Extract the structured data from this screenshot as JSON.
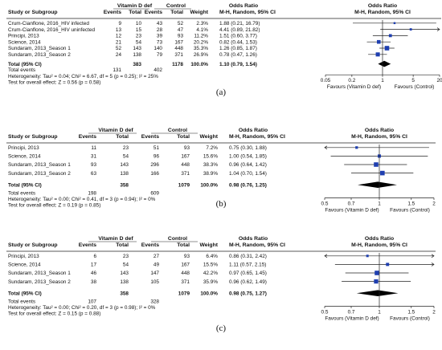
{
  "panels": [
    {
      "caption": "(a)",
      "header": {
        "study": "Study or Subgroup",
        "group1": "Vitamin D def",
        "group2": "Control",
        "events1": "Events",
        "total1": "Total",
        "events2": "Events",
        "total2": "Total",
        "weight": "Weight",
        "or_title": "Odds Ratio",
        "or_sub": "M-H, Random, 95% CI",
        "plot_title": "Odds Ratio",
        "plot_sub": "M-H, Random, 95% CI"
      },
      "rows": [
        {
          "study": "Crum-Cianflone, 2016_HIV infected",
          "e1": "9",
          "t1": "10",
          "e2": "43",
          "t2": "52",
          "w": "2.3%",
          "ci": "1.88 (0.21, 16.79)",
          "or": 1.88,
          "lo": 0.21,
          "hi": 16.79
        },
        {
          "study": "Crum-Cianflone, 2016_HIV uninfected",
          "e1": "13",
          "t1": "15",
          "e2": "28",
          "t2": "47",
          "w": "4.1%",
          "ci": "4.41 (0.89, 21.82)",
          "or": 4.41,
          "lo": 0.89,
          "hi": 21.82
        },
        {
          "study": "Principi, 2013",
          "e1": "12",
          "t1": "23",
          "e2": "39",
          "t2": "93",
          "w": "11.2%",
          "ci": "1.51 (0.60, 3.77)",
          "or": 1.51,
          "lo": 0.6,
          "hi": 3.77
        },
        {
          "study": "Science, 2014",
          "e1": "21",
          "t1": "54",
          "e2": "73",
          "t2": "167",
          "w": "20.2%",
          "ci": "0.82 (0.44, 1.53)",
          "or": 0.82,
          "lo": 0.44,
          "hi": 1.53
        },
        {
          "study": "Sundaram, 2013_Season 1",
          "e1": "52",
          "t1": "143",
          "e2": "140",
          "t2": "448",
          "w": "35.3%",
          "ci": "1.26 (0.85, 1.87)",
          "or": 1.26,
          "lo": 0.85,
          "hi": 1.87
        },
        {
          "study": "Sundaram, 2013_Season 2",
          "e1": "24",
          "t1": "138",
          "e2": "79",
          "t2": "371",
          "w": "26.9%",
          "ci": "0.78 (0.47, 1.26)",
          "or": 0.78,
          "lo": 0.47,
          "hi": 1.26
        }
      ],
      "total": {
        "label": "Total (95% CI)",
        "t1": "383",
        "t2": "1178",
        "w": "100.0%",
        "ci": "1.10 (0.79, 1.54)",
        "or": 1.1,
        "lo": 0.79,
        "hi": 1.54
      },
      "events": {
        "label": "Total events",
        "e1": "131",
        "e2": "402"
      },
      "heterogeneity": "Heterogeneity: Tau² = 0.04; Chi² = 6.67, df = 5 (p = 0.25); I² = 25%",
      "overall": "Test for overall effect: Z = 0.56 (p = 0.58)",
      "axis": {
        "ticks": [
          0.05,
          0.2,
          1,
          5,
          20
        ],
        "tick_labels": [
          "0.05",
          "0.2",
          "1",
          "5",
          "20"
        ],
        "min": 0.05,
        "max": 20
      },
      "favours_left": "Favours (Vitamin D def)",
      "favours_right": "Favours (Control)"
    },
    {
      "caption": "(b)",
      "header": {
        "study": "Study or Subgroup",
        "group1": "Vitamin D def",
        "group2": "Control",
        "events1": "Events",
        "total1": "Total",
        "events2": "Events",
        "total2": "Total",
        "weight": "Weight",
        "or_title": "Odds Ratio",
        "or_sub": "M-H, Random, 95% CI",
        "plot_title": "Odds Ratio",
        "plot_sub": "M-H, Random, 95% CI"
      },
      "rows": [
        {
          "study": "Principi, 2013",
          "e1": "11",
          "t1": "23",
          "e2": "51",
          "t2": "93",
          "w": "7.2%",
          "ci": "0.75 (0.30, 1.88)",
          "or": 0.75,
          "lo": 0.3,
          "hi": 1.88
        },
        {
          "study": "Science, 2014",
          "e1": "31",
          "t1": "54",
          "e2": "96",
          "t2": "167",
          "w": "15.6%",
          "ci": "1.00 (0.54, 1.85)",
          "or": 1.0,
          "lo": 0.54,
          "hi": 1.85
        },
        {
          "study": "Sundaram, 2013_Season 1",
          "e1": "93",
          "t1": "143",
          "e2": "296",
          "t2": "448",
          "w": "38.3%",
          "ci": "0.96 (0.64, 1.42)",
          "or": 0.96,
          "lo": 0.64,
          "hi": 1.42
        },
        {
          "study": "Sundaram, 2013_Season 2",
          "e1": "63",
          "t1": "138",
          "e2": "166",
          "t2": "371",
          "w": "38.9%",
          "ci": "1.04 (0.70, 1.54)",
          "or": 1.04,
          "lo": 0.7,
          "hi": 1.54
        }
      ],
      "total": {
        "label": "Total (95% CI)",
        "t1": "358",
        "t2": "1079",
        "w": "100.0%",
        "ci": "0.98 (0.76, 1.25)",
        "or": 0.98,
        "lo": 0.76,
        "hi": 1.25
      },
      "events": {
        "label": "Total events",
        "e1": "198",
        "e2": "609"
      },
      "heterogeneity": "Heterogeneity: Tau² = 0.00; Chi² = 0.41, df = 3 (p = 0.94); I² = 0%",
      "overall": "Test for overall effect: Z = 0.19 (p = 0.85)",
      "axis": {
        "ticks": [
          0.5,
          0.7,
          1,
          1.5,
          2
        ],
        "tick_labels": [
          "0.5",
          "0.7",
          "1",
          "1.5",
          "2"
        ],
        "min": 0.5,
        "max": 2
      },
      "favours_left": "Favours (Vitamin D def)",
      "favours_right": "Favours (Control)"
    },
    {
      "caption": "(c)",
      "header": {
        "study": "Study or Subgroup",
        "group1": "Vitamin D def",
        "group2": "Control",
        "events1": "Events",
        "total1": "Total",
        "events2": "Events",
        "total2": "Total",
        "weight": "Weight",
        "or_title": "Odds Ratio",
        "or_sub": "M-H, Random, 95% CI",
        "plot_title": "Odds Ratio",
        "plot_sub": "M-H, Random, 95% CI"
      },
      "rows": [
        {
          "study": "Principi, 2013",
          "e1": "6",
          "t1": "23",
          "e2": "27",
          "t2": "93",
          "w": "6.4%",
          "ci": "0.86 (0.31, 2.42)",
          "or": 0.86,
          "lo": 0.31,
          "hi": 2.42
        },
        {
          "study": "Science, 2014",
          "e1": "17",
          "t1": "54",
          "e2": "49",
          "t2": "167",
          "w": "15.5%",
          "ci": "1.11 (0.57, 2.15)",
          "or": 1.11,
          "lo": 0.57,
          "hi": 2.15
        },
        {
          "study": "Sundaram, 2013_Season 1",
          "e1": "46",
          "t1": "143",
          "e2": "147",
          "t2": "448",
          "w": "42.2%",
          "ci": "0.97 (0.65, 1.45)",
          "or": 0.97,
          "lo": 0.65,
          "hi": 1.45
        },
        {
          "study": "Sundaram, 2013_Season 2",
          "e1": "38",
          "t1": "138",
          "e2": "105",
          "t2": "371",
          "w": "35.9%",
          "ci": "0.96 (0.62, 1.49)",
          "or": 0.96,
          "lo": 0.62,
          "hi": 1.49
        }
      ],
      "total": {
        "label": "Total (95% CI)",
        "t1": "358",
        "t2": "1079",
        "w": "100.0%",
        "ci": "0.98 (0.75, 1.27)",
        "or": 0.98,
        "lo": 0.75,
        "hi": 1.27
      },
      "events": {
        "label": "Total events",
        "e1": "107",
        "e2": "328"
      },
      "heterogeneity": "Heterogeneity: Tau² = 0.00; Chi² = 0.20, df = 3 (p = 0.98); I² = 0%",
      "overall": "Test for overall effect: Z = 0.15 (p = 0.88)",
      "axis": {
        "ticks": [
          0.5,
          0.7,
          1,
          1.5,
          2
        ],
        "tick_labels": [
          "0.5",
          "0.7",
          "1",
          "1.5",
          "2"
        ],
        "min": 0.5,
        "max": 2
      },
      "favours_left": "Favours (Vitamin D def)",
      "favours_right": "Favours (Control)"
    }
  ],
  "colors": {
    "marker": "#1f3fb0",
    "text": "#111111",
    "line": "#222222"
  }
}
